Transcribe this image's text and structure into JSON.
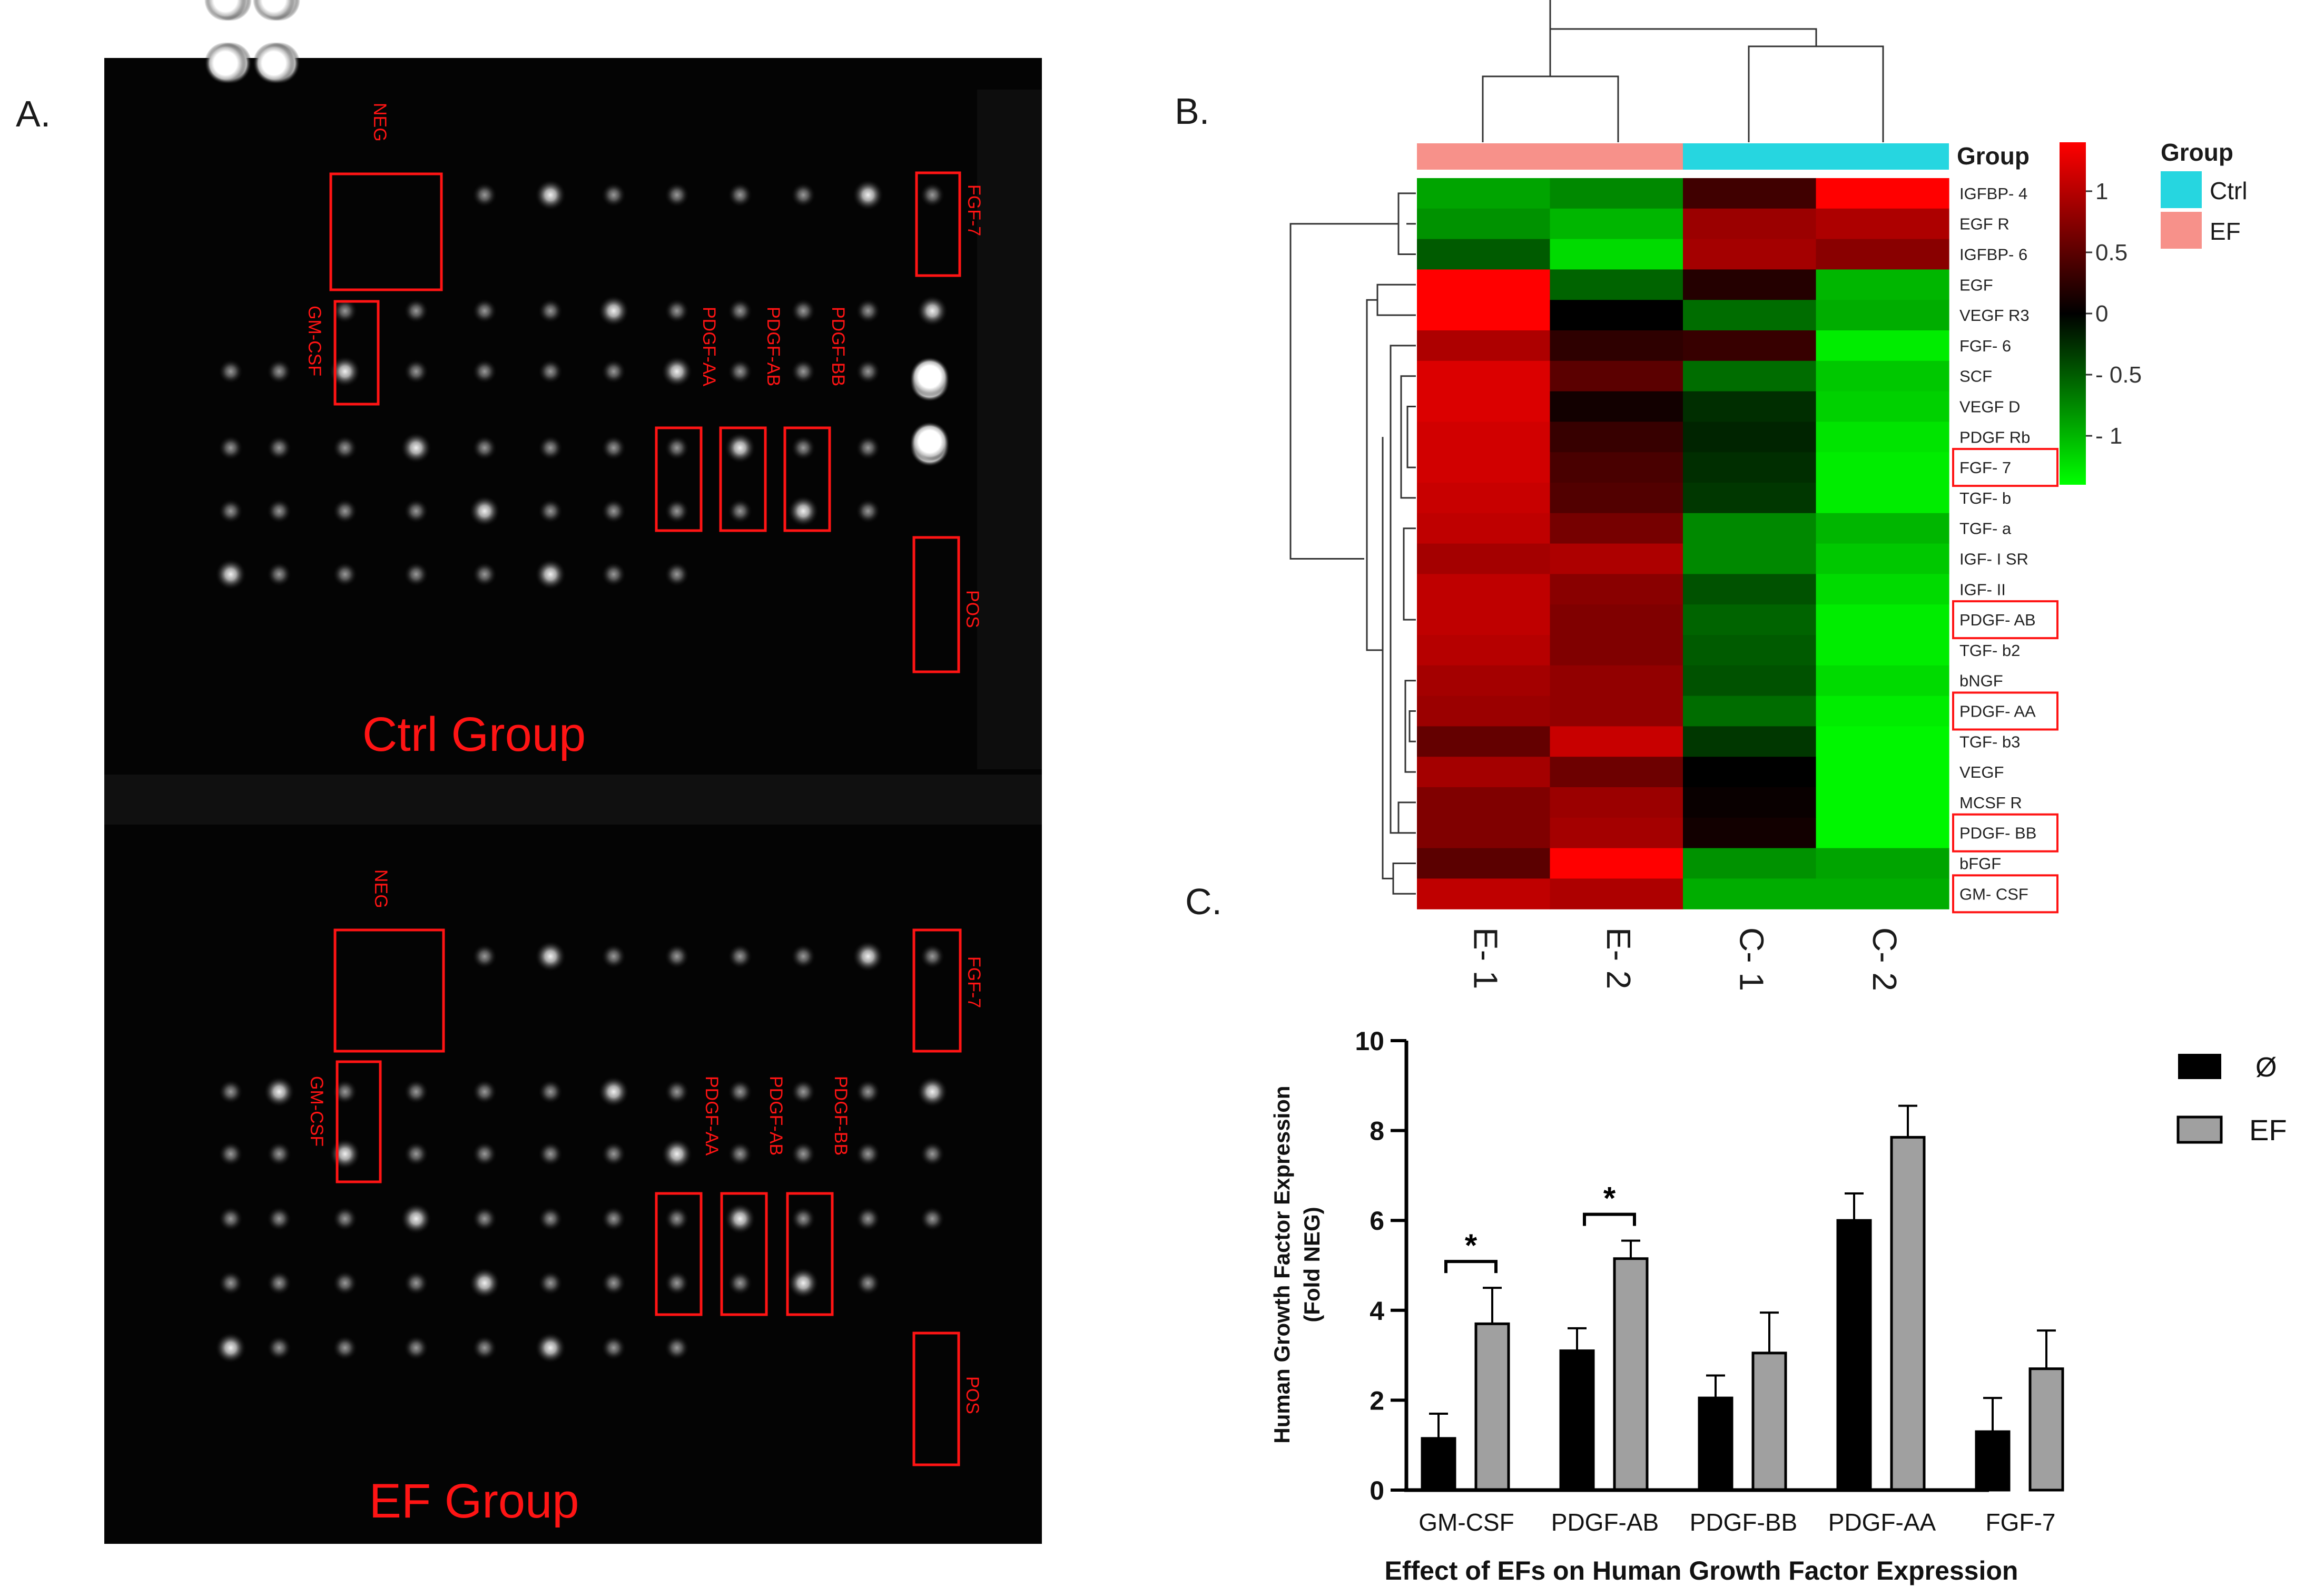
{
  "panels": {
    "a": "A.",
    "b": "B.",
    "c": "C."
  },
  "colors": {
    "red": "#ff1414",
    "black_bg": "#040404",
    "ctrl": "#26d6e0",
    "ef": "#f7918a",
    "bar_dark": "#000000",
    "bar_gray": "#a0a0a0"
  },
  "array_panel": {
    "ctrl_title": "Ctrl Group",
    "ef_title": "EF Group",
    "labels": {
      "neg": "NEG",
      "fgf7": "FGF-7",
      "gmcsf": "GM-CSF",
      "pdgfaa": "PDGF-AA",
      "pdgfab": "PDGF-AB",
      "pdgfbb": "PDGF-BB",
      "pos": "POS"
    }
  },
  "heatmap": {
    "group_label": "Group",
    "legend_title": "Group",
    "legend_items": [
      {
        "label": "Ctrl",
        "color": "#26d6e0"
      },
      {
        "label": "EF",
        "color": "#f7918a"
      }
    ],
    "colorbar_ticks": [
      {
        "label": "1",
        "value": 1
      },
      {
        "label": "0.5",
        "value": 0.5
      },
      {
        "label": "0",
        "value": 0
      },
      {
        "label": "- 0.5",
        "value": -0.5
      },
      {
        "label": "- 1",
        "value": -1
      }
    ],
    "columns": [
      "E- 1",
      "E- 2",
      "C- 1",
      "C- 2"
    ],
    "rows": [
      "IGFBP- 4",
      "EGF R",
      "IGFBP- 6",
      "EGF",
      "VEGF R3",
      "FGF- 6",
      "SCF",
      "VEGF D",
      "PDGF Rb",
      "FGF- 7",
      "TGF- b",
      "TGF- a",
      "IGF- I SR",
      "IGF- II",
      "PDGF- AB",
      "TGF- b2",
      "bNGF",
      "PDGF- AA",
      "TGF- b3",
      "VEGF",
      "MCSF R",
      "PDGF- BB",
      "bFGF",
      "GM- CSF"
    ],
    "highlighted_rows": [
      "FGF- 7",
      "PDGF- AB",
      "PDGF- AA",
      "PDGF- BB",
      "GM- CSF"
    ],
    "values": [
      [
        -0.9,
        -0.75,
        0.35,
        1.4
      ],
      [
        -0.8,
        -1.0,
        0.85,
        0.95
      ],
      [
        -0.5,
        -1.2,
        0.9,
        0.75
      ],
      [
        1.5,
        -0.55,
        0.2,
        -1.0
      ],
      [
        1.5,
        0.0,
        -0.6,
        -0.95
      ],
      [
        0.95,
        0.25,
        0.3,
        -1.3
      ],
      [
        1.2,
        0.5,
        -0.6,
        -1.1
      ],
      [
        1.2,
        0.1,
        -0.25,
        -1.15
      ],
      [
        1.15,
        0.3,
        -0.2,
        -1.25
      ],
      [
        1.15,
        0.4,
        -0.25,
        -1.3
      ],
      [
        1.1,
        0.45,
        -0.3,
        -1.3
      ],
      [
        1.05,
        0.65,
        -0.75,
        -1.0
      ],
      [
        0.9,
        0.95,
        -0.75,
        -1.1
      ],
      [
        1.05,
        0.75,
        -0.45,
        -1.2
      ],
      [
        1.05,
        0.7,
        -0.55,
        -1.3
      ],
      [
        1.0,
        0.7,
        -0.5,
        -1.3
      ],
      [
        0.9,
        0.8,
        -0.45,
        -1.2
      ],
      [
        0.85,
        0.8,
        -0.6,
        -1.3
      ],
      [
        0.55,
        1.1,
        -0.3,
        -1.35
      ],
      [
        0.9,
        0.6,
        0.0,
        -1.35
      ],
      [
        0.7,
        0.85,
        0.05,
        -1.35
      ],
      [
        0.7,
        0.9,
        0.1,
        -1.35
      ],
      [
        0.5,
        1.4,
        -0.8,
        -0.9
      ],
      [
        1.05,
        0.95,
        -0.95,
        -0.95
      ]
    ]
  },
  "chart_data": {
    "type": "bar",
    "title": "Effect of EFs on Human Growth Factor Expression",
    "xlabel": "Effect of EFs on Human Growth Factor Expression",
    "ylabel": "Human Growth Factor Expression",
    "ylabel2": "(Fold NEG)",
    "categories": [
      "GM-CSF",
      "PDGF-AB",
      "PDGF-BB",
      "PDGF-AA",
      "FGF-7"
    ],
    "series": [
      {
        "name": "Ø",
        "color": "#000000",
        "values": [
          1.15,
          3.1,
          2.05,
          6.0,
          1.3
        ],
        "errors": [
          0.55,
          0.5,
          0.5,
          0.6,
          0.75
        ]
      },
      {
        "name": "EF",
        "color": "#a0a0a0",
        "values": [
          3.7,
          5.15,
          3.05,
          7.85,
          2.7
        ],
        "errors": [
          0.8,
          0.4,
          0.9,
          0.7,
          0.85
        ]
      }
    ],
    "ylim": [
      0,
      10
    ],
    "yticks": [
      0,
      2,
      4,
      6,
      8,
      10
    ],
    "significance": [
      {
        "category": "GM-CSF",
        "label": "*"
      },
      {
        "category": "PDGF-AB",
        "label": "*"
      }
    ]
  }
}
